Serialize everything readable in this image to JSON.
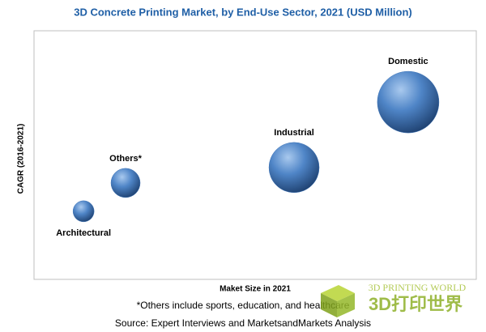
{
  "chart_data": {
    "type": "bubble",
    "title": "3D Concrete Printing Market, by End-Use Sector, 2021 (USD Million)",
    "x_label": "Maket Size in 2021",
    "y_label": "CAGR (2016-2021)",
    "categories": [
      "Architectural",
      "Others*",
      "Industrial",
      "Domestic"
    ],
    "x": [
      11.2,
      20.7,
      58.8,
      84.6
    ],
    "y": [
      27.4,
      38.8,
      45,
      71.3
    ],
    "sizes": [
      13,
      18,
      31,
      38
    ],
    "color": "#3f75b8",
    "xlim": [
      0,
      100
    ],
    "ylim": [
      0,
      100
    ],
    "footnote": "*Others include sports, education, and healthcare",
    "source": "Source: Expert Interviews and MarketsandMarkets Analysis"
  },
  "watermark": {
    "line1": "3D PRINTING WORLD",
    "line2": "3D打印世界"
  }
}
